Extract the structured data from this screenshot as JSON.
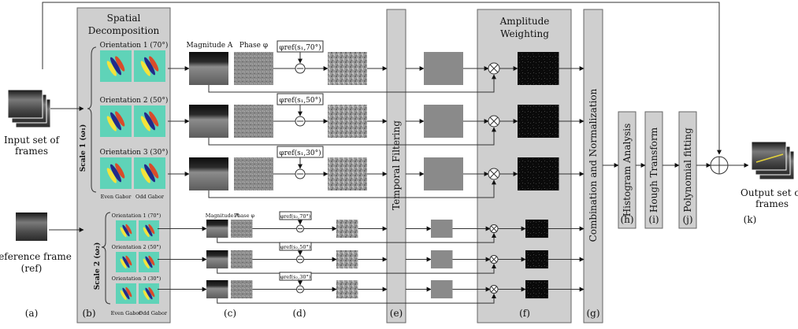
{
  "inputs": {
    "input_frames": [
      "Input set of",
      "frames"
    ],
    "reference_frame": [
      "Reference frame",
      "(ref)"
    ]
  },
  "spatial": {
    "title": [
      "Spatial",
      "Decomposition"
    ],
    "scale1": "Scale 1 (ω₁)",
    "scale2": "Scale 2 (ω₂)",
    "orientations_scale1": [
      "Orientation 1 (70°)",
      "Orientation 2 (50°)",
      "Orientation 3 (30°)"
    ],
    "orientations_scale2": [
      "Orientation 1 (70°)",
      "Orientation 2 (50°)",
      "Orientation 3 (30°)"
    ],
    "even_gabor": "Even Gabor",
    "odd_gabor": "Odd Gabor"
  },
  "columns": {
    "magnitude": "Magnitude A",
    "phase": "Phase φ"
  },
  "phase_refs_scale1": [
    "φref(s₁,70°)",
    "φref(s₁,50°)",
    "φref(s₁,30°)"
  ],
  "phase_refs_scale2": [
    "φref(s₂,70°)",
    "φref(s₂,50°)",
    "φref(s₂,30°)"
  ],
  "stages": {
    "temporal": "Temporal Filtering",
    "amplitude": [
      "Amplitude",
      "Weighting"
    ],
    "combination": "Combination and Normalization",
    "histogram": "Histogram Analysis",
    "hough": "Hough Transform",
    "poly": "Polynomial fitting"
  },
  "output": [
    "Output set of",
    "frames"
  ],
  "panel_labels": {
    "a": "(a)",
    "b": "(b)",
    "c": "(c)",
    "d": "(d)",
    "e": "(e)",
    "f": "(f)",
    "g": "(g)",
    "h": "(h)",
    "i": "(i)",
    "j": "(j)",
    "k": "(k)"
  }
}
